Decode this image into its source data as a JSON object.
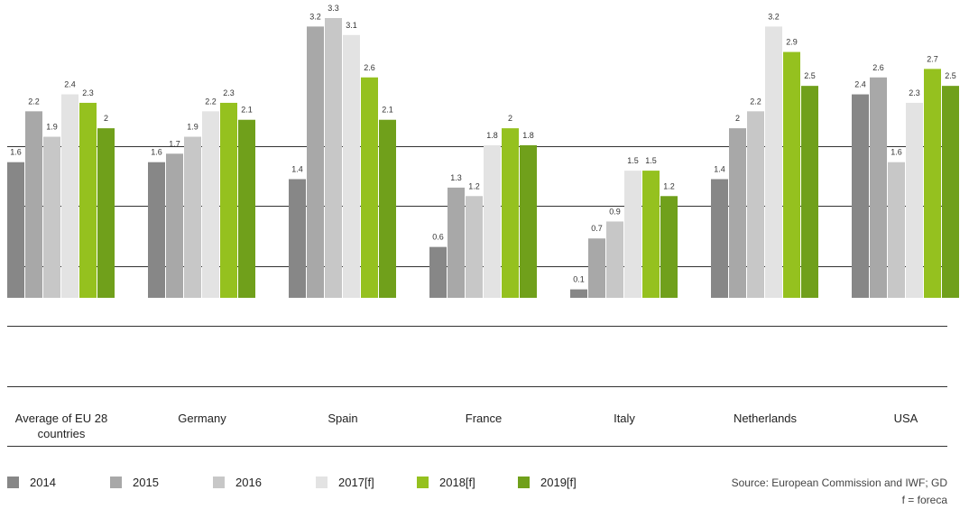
{
  "chart_data": {
    "type": "bar",
    "categories": [
      "Average of EU 28 countries",
      "Germany",
      "Spain",
      "France",
      "Italy",
      "Netherlands",
      "USA"
    ],
    "series": [
      {
        "name": "2014",
        "color": "#878787",
        "values": [
          1.6,
          1.6,
          1.4,
          0.6,
          0.1,
          1.4,
          2.4
        ]
      },
      {
        "name": "2015",
        "color": "#a8a8a8",
        "values": [
          2.2,
          1.7,
          3.2,
          1.3,
          0.7,
          2.0,
          2.6
        ]
      },
      {
        "name": "2016",
        "color": "#c7c7c7",
        "values": [
          1.9,
          1.9,
          3.3,
          1.2,
          0.9,
          2.2,
          1.6
        ]
      },
      {
        "name": "2017[f]",
        "color": "#e3e3e3",
        "values": [
          2.4,
          2.2,
          3.1,
          1.8,
          1.5,
          3.2,
          2.3
        ]
      },
      {
        "name": "2018[f]",
        "color": "#95c11f",
        "values": [
          2.3,
          2.3,
          2.6,
          2.0,
          1.5,
          2.9,
          2.7
        ]
      },
      {
        "name": "2019[f]",
        "color": "#70a01b",
        "values": [
          2.0,
          2.1,
          2.1,
          1.8,
          1.2,
          2.5,
          2.5
        ]
      }
    ],
    "ylim": [
      0,
      3.3
    ],
    "source": "Source: European Commission and IWF; GD",
    "note": "f = foreca"
  }
}
